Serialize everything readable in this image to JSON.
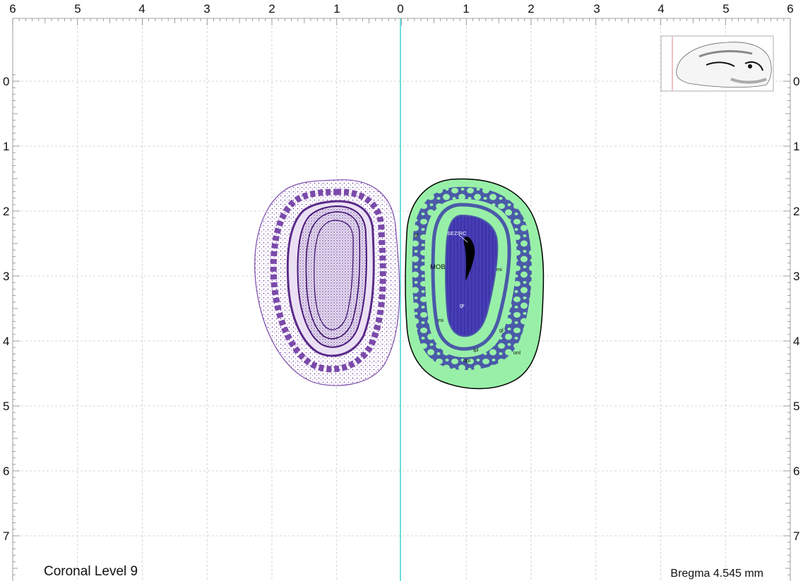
{
  "figure": {
    "title": "Coronal Level 9",
    "bregma": "Bregma 4.545 mm"
  },
  "axes": {
    "horizontal_ticks": [
      "6",
      "5",
      "4",
      "3",
      "2",
      "1",
      "0",
      "1",
      "2",
      "3",
      "4",
      "5",
      "6"
    ],
    "vertical_ticks": [
      "0",
      "1",
      "2",
      "3",
      "4",
      "5",
      "6",
      "7"
    ]
  },
  "regions": {
    "mob": "MOB",
    "gl_left": "gl",
    "gl_right": "gl",
    "mi_upper": "mi",
    "mi_lower": "mi",
    "gr": "gr",
    "sez_rc": "SEZ/RC",
    "ipl": "ipl",
    "opl": "opl",
    "onl": "onl"
  },
  "colors": {
    "midline": "#40d0d0",
    "grid": "#c8c8c8",
    "green_layer": "#98f0a8",
    "blue_layer": "#4a5aa8",
    "granule_layer": "#4238b0",
    "nissl_stain": "#5a2a8a"
  }
}
